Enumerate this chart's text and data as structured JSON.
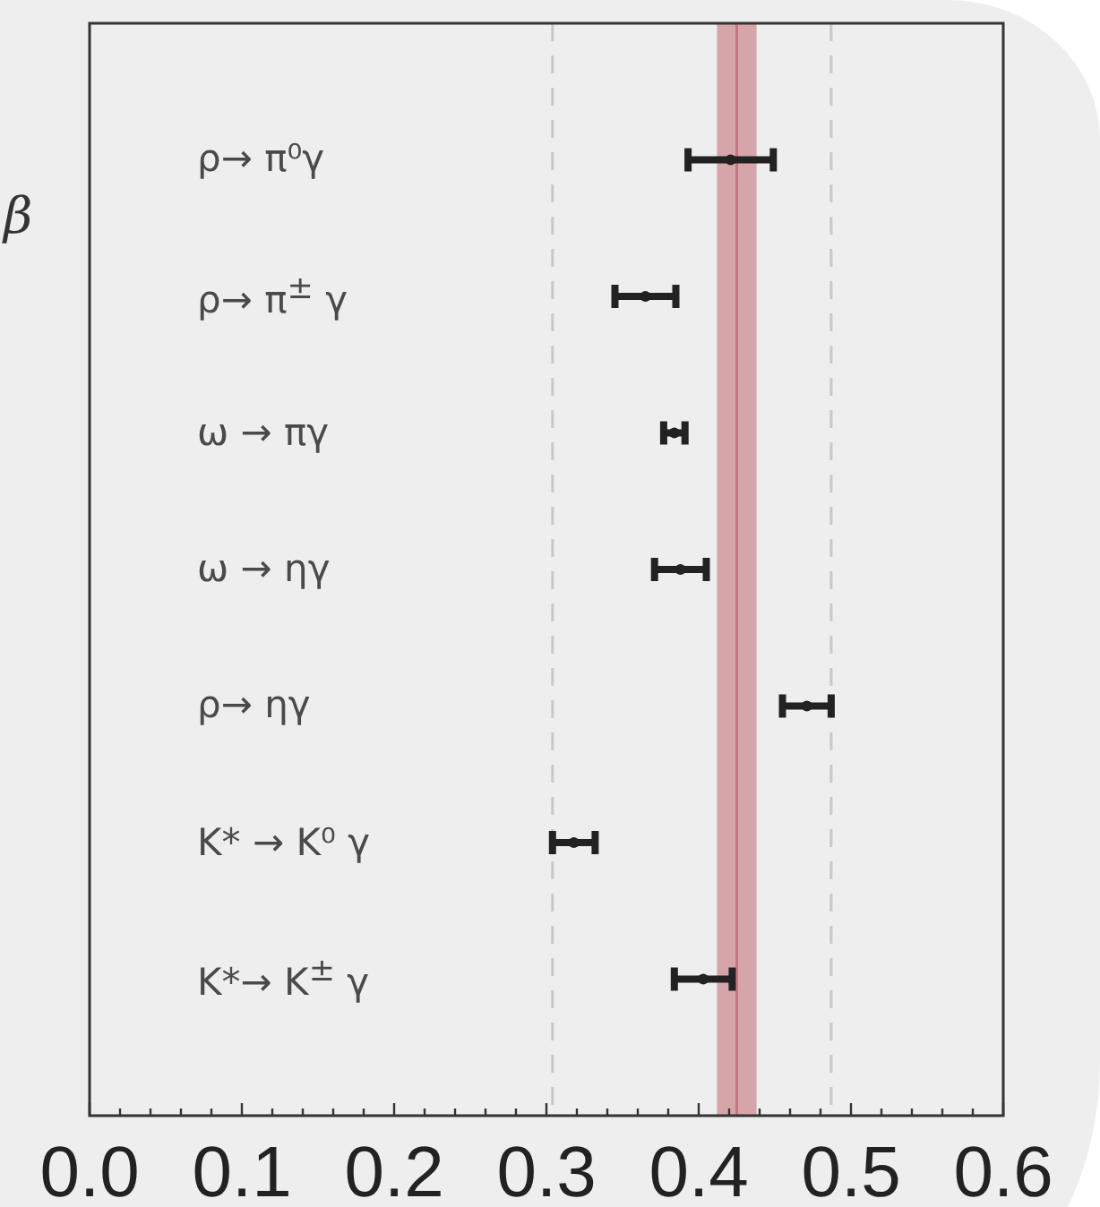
{
  "chart_data": {
    "type": "scatter",
    "orientation": "horizontal",
    "ylabel": "β",
    "categories": [
      "ρ→ π⁰γ",
      "ρ→ π$^{±}$ γ",
      "ω → πγ",
      "ω → ηγ",
      "ρ→ ηγ",
      "K* → K⁰ γ",
      "K*→ K$^{±}$ γ"
    ],
    "values": [
      0.421,
      0.365,
      0.384,
      0.388,
      0.471,
      0.318,
      0.403
    ],
    "errors": [
      0.028,
      0.02,
      0.007,
      0.017,
      0.016,
      0.014,
      0.019
    ],
    "color": "#222222",
    "marker": "circle",
    "xlim": [
      0,
      0.6
    ],
    "xticks": [
      {
        "value": 0,
        "label": "0.0"
      },
      {
        "value": 0.02,
        "label": null
      },
      {
        "value": 0.04,
        "label": null
      },
      {
        "value": 0.06,
        "label": null
      },
      {
        "value": 0.08,
        "label": null
      },
      {
        "value": 0.1,
        "label": "0.1"
      },
      {
        "value": 0.12,
        "label": null
      },
      {
        "value": 0.14,
        "label": null
      },
      {
        "value": 0.16,
        "label": null
      },
      {
        "value": 0.18,
        "label": null
      },
      {
        "value": 0.2,
        "label": "0.2"
      },
      {
        "value": 0.22,
        "label": null
      },
      {
        "value": 0.24,
        "label": null
      },
      {
        "value": 0.26,
        "label": null
      },
      {
        "value": 0.28,
        "label": null
      },
      {
        "value": 0.3,
        "label": "0.3"
      },
      {
        "value": 0.32,
        "label": null
      },
      {
        "value": 0.34,
        "label": null
      },
      {
        "value": 0.36,
        "label": null
      },
      {
        "value": 0.38,
        "label": null
      },
      {
        "value": 0.4,
        "label": "0.4"
      },
      {
        "value": 0.42,
        "label": null
      },
      {
        "value": 0.44,
        "label": null
      },
      {
        "value": 0.46,
        "label": null
      },
      {
        "value": 0.48,
        "label": null
      },
      {
        "value": 0.5,
        "label": "0.5"
      },
      {
        "value": 0.52,
        "label": null
      },
      {
        "value": 0.54,
        "label": null
      },
      {
        "value": 0.56,
        "label": null
      },
      {
        "value": 0.58,
        "label": null
      },
      {
        "value": 0.6,
        "label": "0.6"
      }
    ],
    "ref_lines": [
      {
        "axis": "x",
        "value": 0.304,
        "color": "#c8c8c8",
        "line_style": "dashed"
      },
      {
        "axis": "x",
        "value": 0.487,
        "color": "#c8c8c8",
        "line_style": "dashed"
      },
      {
        "axis": "x",
        "value": 0.425,
        "color": "#c27780",
        "line_style": "solid"
      }
    ],
    "bands": [
      {
        "axis": "x",
        "from": 0.412,
        "to": 0.438,
        "color": "#d6a5a9"
      }
    ]
  }
}
